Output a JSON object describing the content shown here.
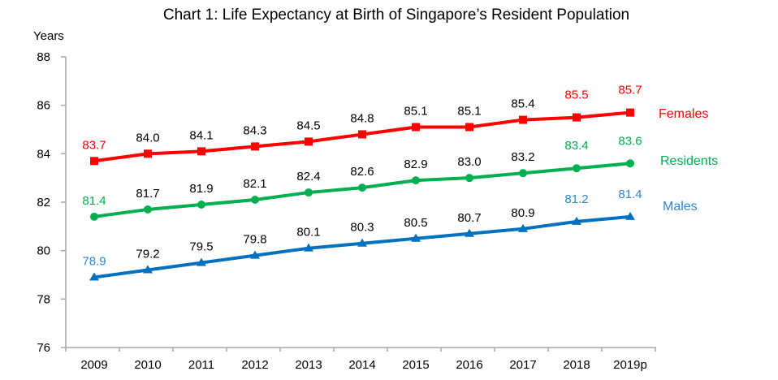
{
  "chart_data": {
    "type": "line",
    "title": "Chart 1: Life Expectancy at Birth of Singapore’s Resident Population",
    "xlabel": "",
    "ylabel": "Years",
    "ylim": [
      76,
      88
    ],
    "yticks": [
      76,
      78,
      80,
      82,
      84,
      86,
      88
    ],
    "grid": false,
    "legend": "right (inline labels at line ends)",
    "categories": [
      "2009",
      "2010",
      "2011",
      "2012",
      "2013",
      "2014",
      "2015",
      "2016",
      "2017",
      "2018",
      "2019p"
    ],
    "series": [
      {
        "name": "Females",
        "color": "#ff0000",
        "marker": "square",
        "values": [
          83.7,
          84.0,
          84.1,
          84.3,
          84.5,
          84.8,
          85.1,
          85.1,
          85.4,
          85.5,
          85.7
        ],
        "labels": [
          "83.7",
          "84.0",
          "84.1",
          "84.3",
          "84.5",
          "84.8",
          "85.1",
          "85.1",
          "85.4",
          "85.5",
          "85.7"
        ],
        "highlighted_label_indices": [
          0,
          9,
          10
        ]
      },
      {
        "name": "Residents",
        "color": "#00b050",
        "marker": "circle",
        "values": [
          81.4,
          81.7,
          81.9,
          82.1,
          82.4,
          82.6,
          82.9,
          83.0,
          83.2,
          83.4,
          83.6
        ],
        "labels": [
          "81.4",
          "81.7",
          "81.9",
          "82.1",
          "82.4",
          "82.6",
          "82.9",
          "83.0",
          "83.2",
          "83.4",
          "83.6"
        ],
        "highlighted_label_indices": [
          0,
          9,
          10
        ]
      },
      {
        "name": "Males",
        "color": "#0070c0",
        "marker": "triangle",
        "values": [
          78.9,
          79.2,
          79.5,
          79.8,
          80.1,
          80.3,
          80.5,
          80.7,
          80.9,
          81.2,
          81.4
        ],
        "labels": [
          "78.9",
          "79.2",
          "79.5",
          "79.8",
          "80.1",
          "80.3",
          "80.5",
          "80.7",
          "80.9",
          "81.2",
          "81.4"
        ],
        "highlighted_label_indices": [
          0,
          9,
          10
        ],
        "label_color": "#2e86d0"
      }
    ],
    "default_label_color": "#000000",
    "axis_color": "#a6a6a6"
  }
}
